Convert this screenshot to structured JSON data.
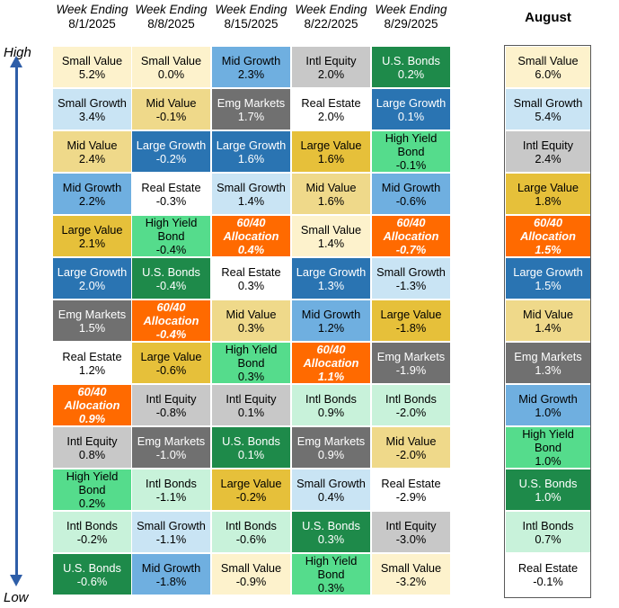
{
  "axis": {
    "high": "High",
    "low": "Low"
  },
  "headers": [
    {
      "label": "Week Ending",
      "date": "8/1/2025"
    },
    {
      "label": "Week Ending",
      "date": "8/8/2025"
    },
    {
      "label": "Week Ending",
      "date": "8/15/2025"
    },
    {
      "label": "Week Ending",
      "date": "8/22/2025"
    },
    {
      "label": "Week Ending",
      "date": "8/29/2025"
    }
  ],
  "august_header": "August",
  "colors": {
    "Small Value": "#fdf2cc",
    "Small Growth": "#c9e4f4",
    "Mid Value": "#efd98a",
    "Mid Growth": "#6fafe0",
    "Large Value": "#e6c03a",
    "Large Growth": "#2a74b2",
    "Emg Markets": "#707070",
    "Real Estate": "#ffffff",
    "60/40 Allocation": "#ff6a00",
    "Intl Equity": "#c8c8c8",
    "High Yield Bond": "#55dc8c",
    "Intl Bonds": "#c8f2da",
    "U.S. Bonds": "#1e8a4a"
  },
  "chart_data": {
    "type": "table",
    "columns": [
      "8/1/2025",
      "8/8/2025",
      "8/15/2025",
      "8/22/2025",
      "8/29/2025"
    ],
    "weekly": [
      [
        {
          "name": "Small Value",
          "value": "5.2%"
        },
        {
          "name": "Small Growth",
          "value": "3.4%"
        },
        {
          "name": "Mid Value",
          "value": "2.4%"
        },
        {
          "name": "Mid Growth",
          "value": "2.2%"
        },
        {
          "name": "Large Value",
          "value": "2.1%"
        },
        {
          "name": "Large Growth",
          "value": "2.0%"
        },
        {
          "name": "Emg Markets",
          "value": "1.5%"
        },
        {
          "name": "Real Estate",
          "value": "1.2%"
        },
        {
          "name": "60/40 Allocation",
          "value": "0.9%"
        },
        {
          "name": "Intl Equity",
          "value": "0.8%"
        },
        {
          "name": "High Yield Bond",
          "value": "0.2%"
        },
        {
          "name": "Intl Bonds",
          "value": "-0.2%"
        },
        {
          "name": "U.S. Bonds",
          "value": "-0.6%"
        }
      ],
      [
        {
          "name": "Small Value",
          "value": "0.0%"
        },
        {
          "name": "Mid Value",
          "value": "-0.1%"
        },
        {
          "name": "Large Growth",
          "value": "-0.2%"
        },
        {
          "name": "Real Estate",
          "value": "-0.3%"
        },
        {
          "name": "High Yield Bond",
          "value": "-0.4%"
        },
        {
          "name": "U.S. Bonds",
          "value": "-0.4%"
        },
        {
          "name": "60/40 Allocation",
          "value": "-0.4%"
        },
        {
          "name": "Large Value",
          "value": "-0.6%"
        },
        {
          "name": "Intl Equity",
          "value": "-0.8%"
        },
        {
          "name": "Emg Markets",
          "value": "-1.0%"
        },
        {
          "name": "Intl Bonds",
          "value": "-1.1%"
        },
        {
          "name": "Small Growth",
          "value": "-1.1%"
        },
        {
          "name": "Mid Growth",
          "value": "-1.8%"
        }
      ],
      [
        {
          "name": "Mid Growth",
          "value": "2.3%"
        },
        {
          "name": "Emg Markets",
          "value": "1.7%"
        },
        {
          "name": "Large Growth",
          "value": "1.6%"
        },
        {
          "name": "Small Growth",
          "value": "1.4%"
        },
        {
          "name": "60/40 Allocation",
          "value": "0.4%"
        },
        {
          "name": "Real Estate",
          "value": "0.3%"
        },
        {
          "name": "Mid Value",
          "value": "0.3%"
        },
        {
          "name": "High Yield Bond",
          "value": "0.3%"
        },
        {
          "name": "Intl Equity",
          "value": "0.1%"
        },
        {
          "name": "U.S. Bonds",
          "value": "0.1%"
        },
        {
          "name": "Large Value",
          "value": "-0.2%"
        },
        {
          "name": "Intl Bonds",
          "value": "-0.6%"
        },
        {
          "name": "Small Value",
          "value": "-0.9%"
        }
      ],
      [
        {
          "name": "Intl Equity",
          "value": "2.0%"
        },
        {
          "name": "Real Estate",
          "value": "2.0%"
        },
        {
          "name": "Large Value",
          "value": "1.6%"
        },
        {
          "name": "Mid Value",
          "value": "1.6%"
        },
        {
          "name": "Small Value",
          "value": "1.4%"
        },
        {
          "name": "Large Growth",
          "value": "1.3%"
        },
        {
          "name": "Mid Growth",
          "value": "1.2%"
        },
        {
          "name": "60/40 Allocation",
          "value": "1.1%"
        },
        {
          "name": "Intl Bonds",
          "value": "0.9%"
        },
        {
          "name": "Emg Markets",
          "value": "0.9%"
        },
        {
          "name": "Small Growth",
          "value": "0.4%"
        },
        {
          "name": "U.S. Bonds",
          "value": "0.3%"
        },
        {
          "name": "High Yield Bond",
          "value": "0.3%"
        }
      ],
      [
        {
          "name": "U.S. Bonds",
          "value": "0.2%"
        },
        {
          "name": "Large Growth",
          "value": "0.1%"
        },
        {
          "name": "High Yield Bond",
          "value": "-0.1%"
        },
        {
          "name": "Mid Growth",
          "value": "-0.6%"
        },
        {
          "name": "60/40 Allocation",
          "value": "-0.7%"
        },
        {
          "name": "Small Growth",
          "value": "-1.3%"
        },
        {
          "name": "Large Value",
          "value": "-1.8%"
        },
        {
          "name": "Emg Markets",
          "value": "-1.9%"
        },
        {
          "name": "Intl Bonds",
          "value": "-2.0%"
        },
        {
          "name": "Mid Value",
          "value": "-2.0%"
        },
        {
          "name": "Real Estate",
          "value": "-2.9%"
        },
        {
          "name": "Intl Equity",
          "value": "-3.0%"
        },
        {
          "name": "Small Value",
          "value": "-3.2%"
        }
      ]
    ],
    "august": [
      {
        "name": "Small Value",
        "value": "6.0%"
      },
      {
        "name": "Small Growth",
        "value": "5.4%"
      },
      {
        "name": "Intl Equity",
        "value": "2.4%"
      },
      {
        "name": "Large Value",
        "value": "1.8%"
      },
      {
        "name": "60/40 Allocation",
        "value": "1.5%"
      },
      {
        "name": "Large Growth",
        "value": "1.5%"
      },
      {
        "name": "Mid Value",
        "value": "1.4%"
      },
      {
        "name": "Emg Markets",
        "value": "1.3%"
      },
      {
        "name": "Mid Growth",
        "value": "1.0%"
      },
      {
        "name": "High Yield Bond",
        "value": "1.0%"
      },
      {
        "name": "U.S. Bonds",
        "value": "1.0%"
      },
      {
        "name": "Intl Bonds",
        "value": "0.7%"
      },
      {
        "name": "Real Estate",
        "value": "-0.1%"
      }
    ]
  }
}
